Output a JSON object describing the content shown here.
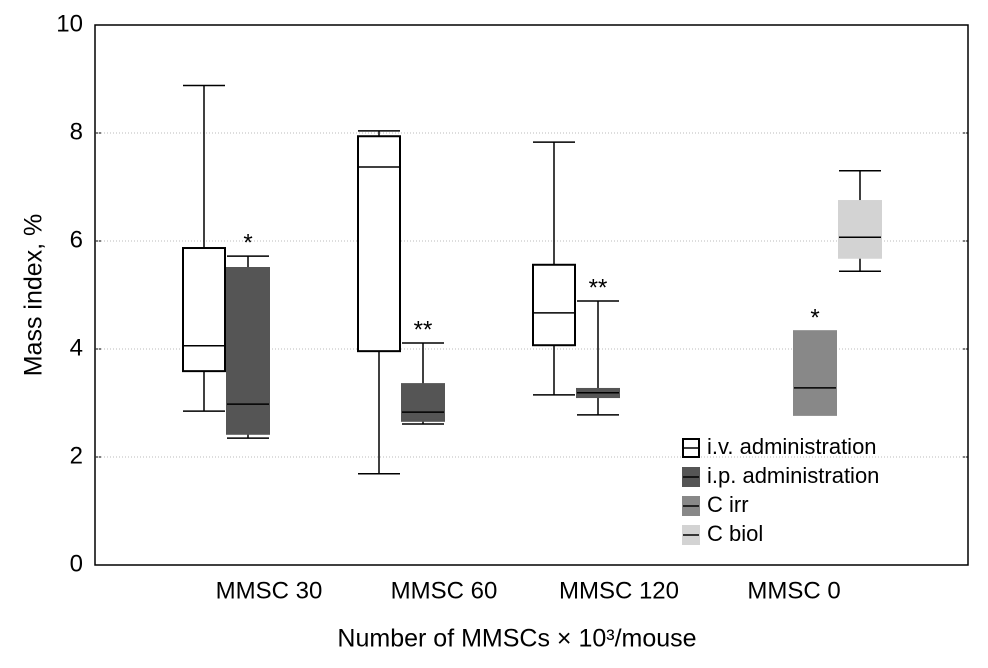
{
  "chart_data": {
    "type": "box",
    "xlabel": "Number of MMSCs × 10³/mouse",
    "ylabel": "Mass index, %",
    "categories": [
      "MMSC 30",
      "MMSC 60",
      "MMSC 120",
      "MMSC 0"
    ],
    "ylim": [
      0,
      10
    ],
    "yticks": [
      0,
      2,
      4,
      6,
      8,
      10
    ],
    "grid": true,
    "legend": "lower right",
    "series": [
      {
        "name": "i.v. administration",
        "color": "#ffffff",
        "min": [
          2.85,
          1.69,
          3.15,
          null
        ],
        "q1": [
          3.59,
          3.96,
          4.07,
          null
        ],
        "median": [
          4.06,
          7.37,
          4.67,
          null
        ],
        "q3": [
          5.87,
          7.94,
          5.56,
          null
        ],
        "max": [
          8.88,
          8.04,
          7.83,
          null
        ]
      },
      {
        "name": "i.p. administration",
        "color": "#555555",
        "min": [
          2.35,
          2.61,
          2.78,
          null
        ],
        "q1": [
          2.43,
          2.67,
          3.11,
          null
        ],
        "median": [
          2.98,
          2.83,
          3.19,
          null
        ],
        "q3": [
          5.5,
          3.35,
          3.26,
          null
        ],
        "max": [
          5.72,
          4.11,
          4.89,
          null
        ],
        "annotations": [
          "*",
          "**",
          "**",
          null
        ]
      },
      {
        "name": "C irr",
        "color": "#888888",
        "min": [
          null,
          null,
          null,
          null
        ],
        "q1": [
          null,
          null,
          null,
          2.78
        ],
        "median": [
          null,
          null,
          null,
          3.28
        ],
        "q3": [
          null,
          null,
          null,
          4.33
        ],
        "max": [
          null,
          null,
          null,
          null
        ],
        "annotations": [
          null,
          null,
          null,
          "*"
        ]
      },
      {
        "name": "C biol",
        "color": "#d3d3d3",
        "min": [
          null,
          null,
          null,
          5.44
        ],
        "q1": [
          null,
          null,
          null,
          5.69
        ],
        "median": [
          null,
          null,
          null,
          6.07
        ],
        "q3": [
          null,
          null,
          null,
          6.74
        ],
        "max": [
          null,
          null,
          null,
          7.3
        ]
      }
    ]
  }
}
